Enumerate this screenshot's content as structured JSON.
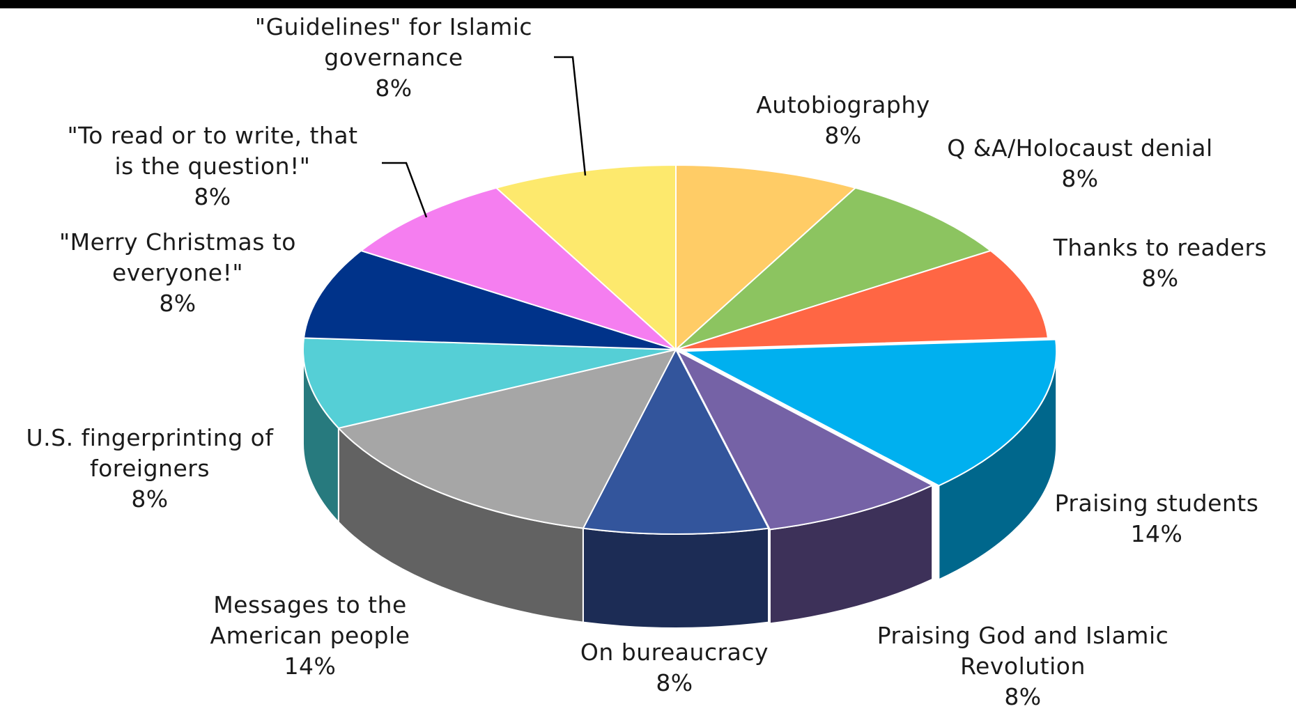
{
  "chart_data": {
    "type": "pie",
    "variant": "3d-exploded-free",
    "start_angle_deg": -90,
    "direction": "clockwise",
    "slices": [
      {
        "label": [
          "Autobiography"
        ],
        "value": 8,
        "value_label": "8%",
        "color": "#ffcc66",
        "side_color": "#a8873f"
      },
      {
        "label": [
          "Q &A/Holocaust denial"
        ],
        "value": 8,
        "value_label": "8%",
        "color": "#8cc460",
        "side_color": "#5b8a3b"
      },
      {
        "label": [
          "Thanks to readers"
        ],
        "value": 8,
        "value_label": "8%",
        "color": "#ff6644",
        "side_color": "#b04630"
      },
      {
        "label": [
          "Praising students"
        ],
        "value": 14,
        "value_label": "14%",
        "color": "#00b0ef",
        "side_color": "#00678c"
      },
      {
        "label": [
          "Praising God and Islamic",
          "Revolution"
        ],
        "value": 8,
        "value_label": "8%",
        "color": "#7562a6",
        "side_color": "#3d3159"
      },
      {
        "label": [
          "On bureaucracy"
        ],
        "value": 8,
        "value_label": "8%",
        "color": "#33559c",
        "side_color": "#1c2c55"
      },
      {
        "label": [
          "Messages to the",
          "American people"
        ],
        "value": 14,
        "value_label": "14%",
        "color": "#a6a6a6",
        "side_color": "#626262"
      },
      {
        "label": [
          "U.S. fingerprinting of",
          "foreigners"
        ],
        "value": 8,
        "value_label": "8%",
        "color": "#55cfd6",
        "side_color": "#277a7e"
      },
      {
        "label": [
          "\"Merry Christmas to",
          "everyone!\""
        ],
        "value": 8,
        "value_label": "8%",
        "color": "#00338a",
        "side_color": "#001d52"
      },
      {
        "label": [
          "\"To read or to write, that",
          "is the question!\""
        ],
        "value": 8,
        "value_label": "8%",
        "color": "#f57ef0",
        "side_color": "#9a4c96"
      },
      {
        "label": [
          "\"Guidelines\" for Islamic",
          "governance"
        ],
        "value": 8,
        "value_label": "8%",
        "color": "#fde96d",
        "side_color": "#a89a43"
      }
    ],
    "legend": "none"
  }
}
